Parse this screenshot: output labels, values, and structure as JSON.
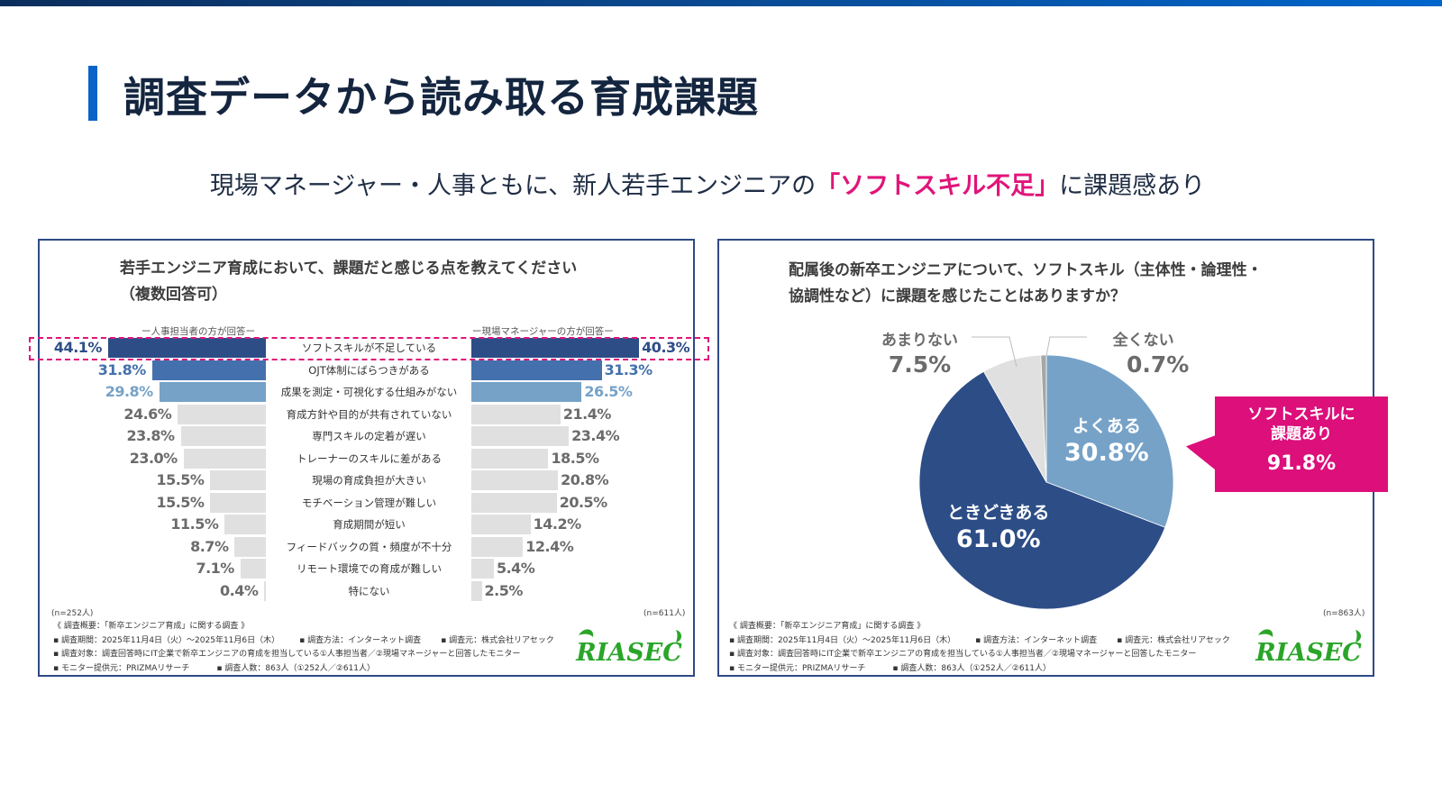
{
  "page": {
    "title": "調査データから読み取る育成課題",
    "subtitle_pre": "現場マネージャー・人事ともに、新人若手エンジニアの",
    "subtitle_highlight": "「ソフトスキル不足」",
    "subtitle_post": "に課題感あり",
    "accent_color": "#0a63c9",
    "highlight_color": "#e0147a"
  },
  "chart_data": [
    {
      "type": "bar",
      "orientation": "horizontal-butterfly",
      "title_line1": "若手エンジニア育成において、課題だと感じる点を教えてください",
      "title_line2": "（複数回答可）",
      "unit": "%",
      "categories": [
        "ソフトスキルが不足している",
        "OJT体制にばらつきがある",
        "成果を測定・可視化する仕組みがない",
        "育成方針や目的が共有されていない",
        "専門スキルの定着が遅い",
        "トレーナーのスキルに差がある",
        "現場の育成負担が大きい",
        "モチベーション管理が難しい",
        "育成期間が短い",
        "フィードバックの質・頻度が不十分",
        "リモート環境での育成が難しい",
        "特にない"
      ],
      "series": [
        {
          "name": "ー人事担当者の方が回答ー",
          "n_label": "(n=252人)",
          "values": [
            44.1,
            31.8,
            29.8,
            24.6,
            23.8,
            23.0,
            15.5,
            15.5,
            11.5,
            8.7,
            7.1,
            0.4
          ],
          "labels": [
            "44.1%",
            "31.8%",
            "29.8%",
            "24.6%",
            "23.8%",
            "23.0%",
            "15.5%",
            "15.5%",
            "11.5%",
            "8.7%",
            "7.1%",
            "0.4%"
          ]
        },
        {
          "name": "ー現場マネージャーの方が回答ー",
          "n_label": "(n=611人)",
          "values": [
            40.3,
            31.3,
            26.5,
            21.4,
            23.4,
            18.5,
            20.8,
            20.5,
            14.2,
            12.4,
            5.4,
            2.5
          ],
          "labels": [
            "40.3%",
            "31.3%",
            "26.5%",
            "21.4%",
            "23.4%",
            "18.5%",
            "20.8%",
            "20.5%",
            "14.2%",
            "12.4%",
            "5.4%",
            "2.5%"
          ]
        }
      ],
      "rank_colors": [
        "#2d4d87",
        "#4471ad",
        "#76a2c8",
        "#e0e0e0"
      ],
      "label_colors": [
        "#2d4d87",
        "#4471ad",
        "#76a2c8",
        "#6b6b6b"
      ],
      "highlighted_category": "ソフトスキルが不足している"
    },
    {
      "type": "pie",
      "title_line1": "配属後の新卒エンジニアについて、ソフトスキル（主体性・論理性・",
      "title_line2": "協調性など）に課題を感じたことはありますか？",
      "n_label": "(n=863人)",
      "slices": [
        {
          "label": "よくある",
          "value": 30.8,
          "value_label": "30.8%",
          "color": "#76a2c8"
        },
        {
          "label": "ときどきある",
          "value": 61.0,
          "value_label": "61.0%",
          "color": "#2d4d87"
        },
        {
          "label": "あまりない",
          "value": 7.5,
          "value_label": "7.5%",
          "color": "#e0e0e0"
        },
        {
          "label": "全くない",
          "value": 0.7,
          "value_label": "0.7%",
          "color": "#a6a6a6"
        }
      ],
      "callout": {
        "text_line1": "ソフトスキルに",
        "text_line2": "課題あり",
        "value": "91.8%"
      }
    }
  ],
  "notes": {
    "header": "《 調査概要：「新卒エンジニア育成」に関する調査 》",
    "period": "▪ 調査期間：2025年11月4日（火）～2025年11月6日（木）",
    "method": "▪ 調査方法：インターネット調査",
    "source": "▪ 調査元：株式会社リアセック",
    "target": "▪ 調査対象：調査回答時にIT企業で新卒エンジニアの育成を担当している①人事担当者／②現場マネージャーと回答したモニター",
    "provider": "▪ モニター提供元：PRIZMAリサーチ",
    "count": "▪ 調査人数：863人（①252人／②611人）"
  },
  "logo": {
    "text": "RIASEC",
    "color": "#2aa52a"
  }
}
